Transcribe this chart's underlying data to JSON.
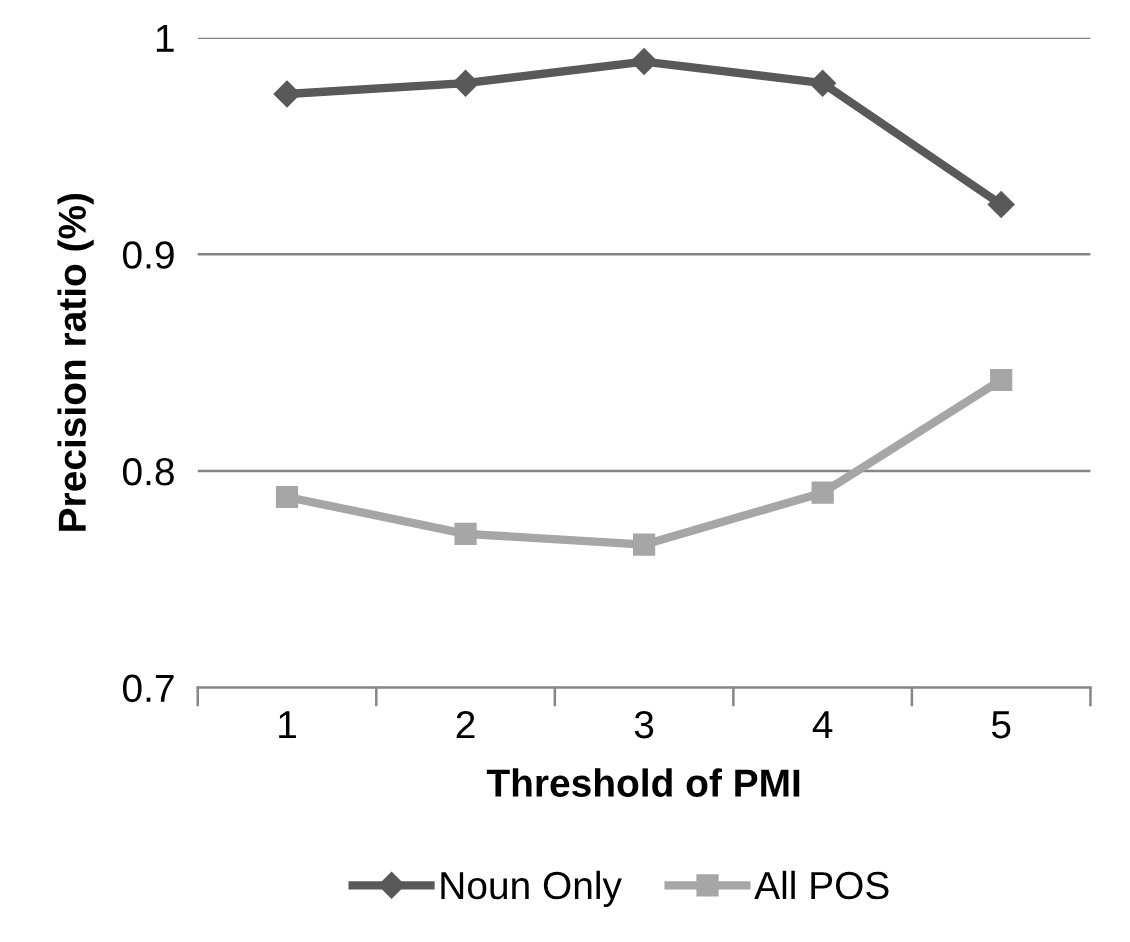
{
  "chart_data": {
    "type": "line",
    "xlabel": "Threshold of PMI",
    "ylabel": "Precision ratio (%)",
    "categories": [
      "1",
      "2",
      "3",
      "4",
      "5"
    ],
    "series": [
      {
        "name": "Noun Only",
        "color": "#595959",
        "marker": "diamond",
        "values": [
          0.974,
          0.979,
          0.989,
          0.979,
          0.923
        ]
      },
      {
        "name": "All POS",
        "color": "#a6a6a6",
        "marker": "square",
        "values": [
          0.788,
          0.771,
          0.766,
          0.79,
          0.842
        ]
      }
    ],
    "ylim": [
      0.7,
      1
    ],
    "yticks": [
      0.7,
      0.8,
      0.9,
      1
    ],
    "grid": "y",
    "legend": "bottom",
    "line_style": "solid"
  }
}
